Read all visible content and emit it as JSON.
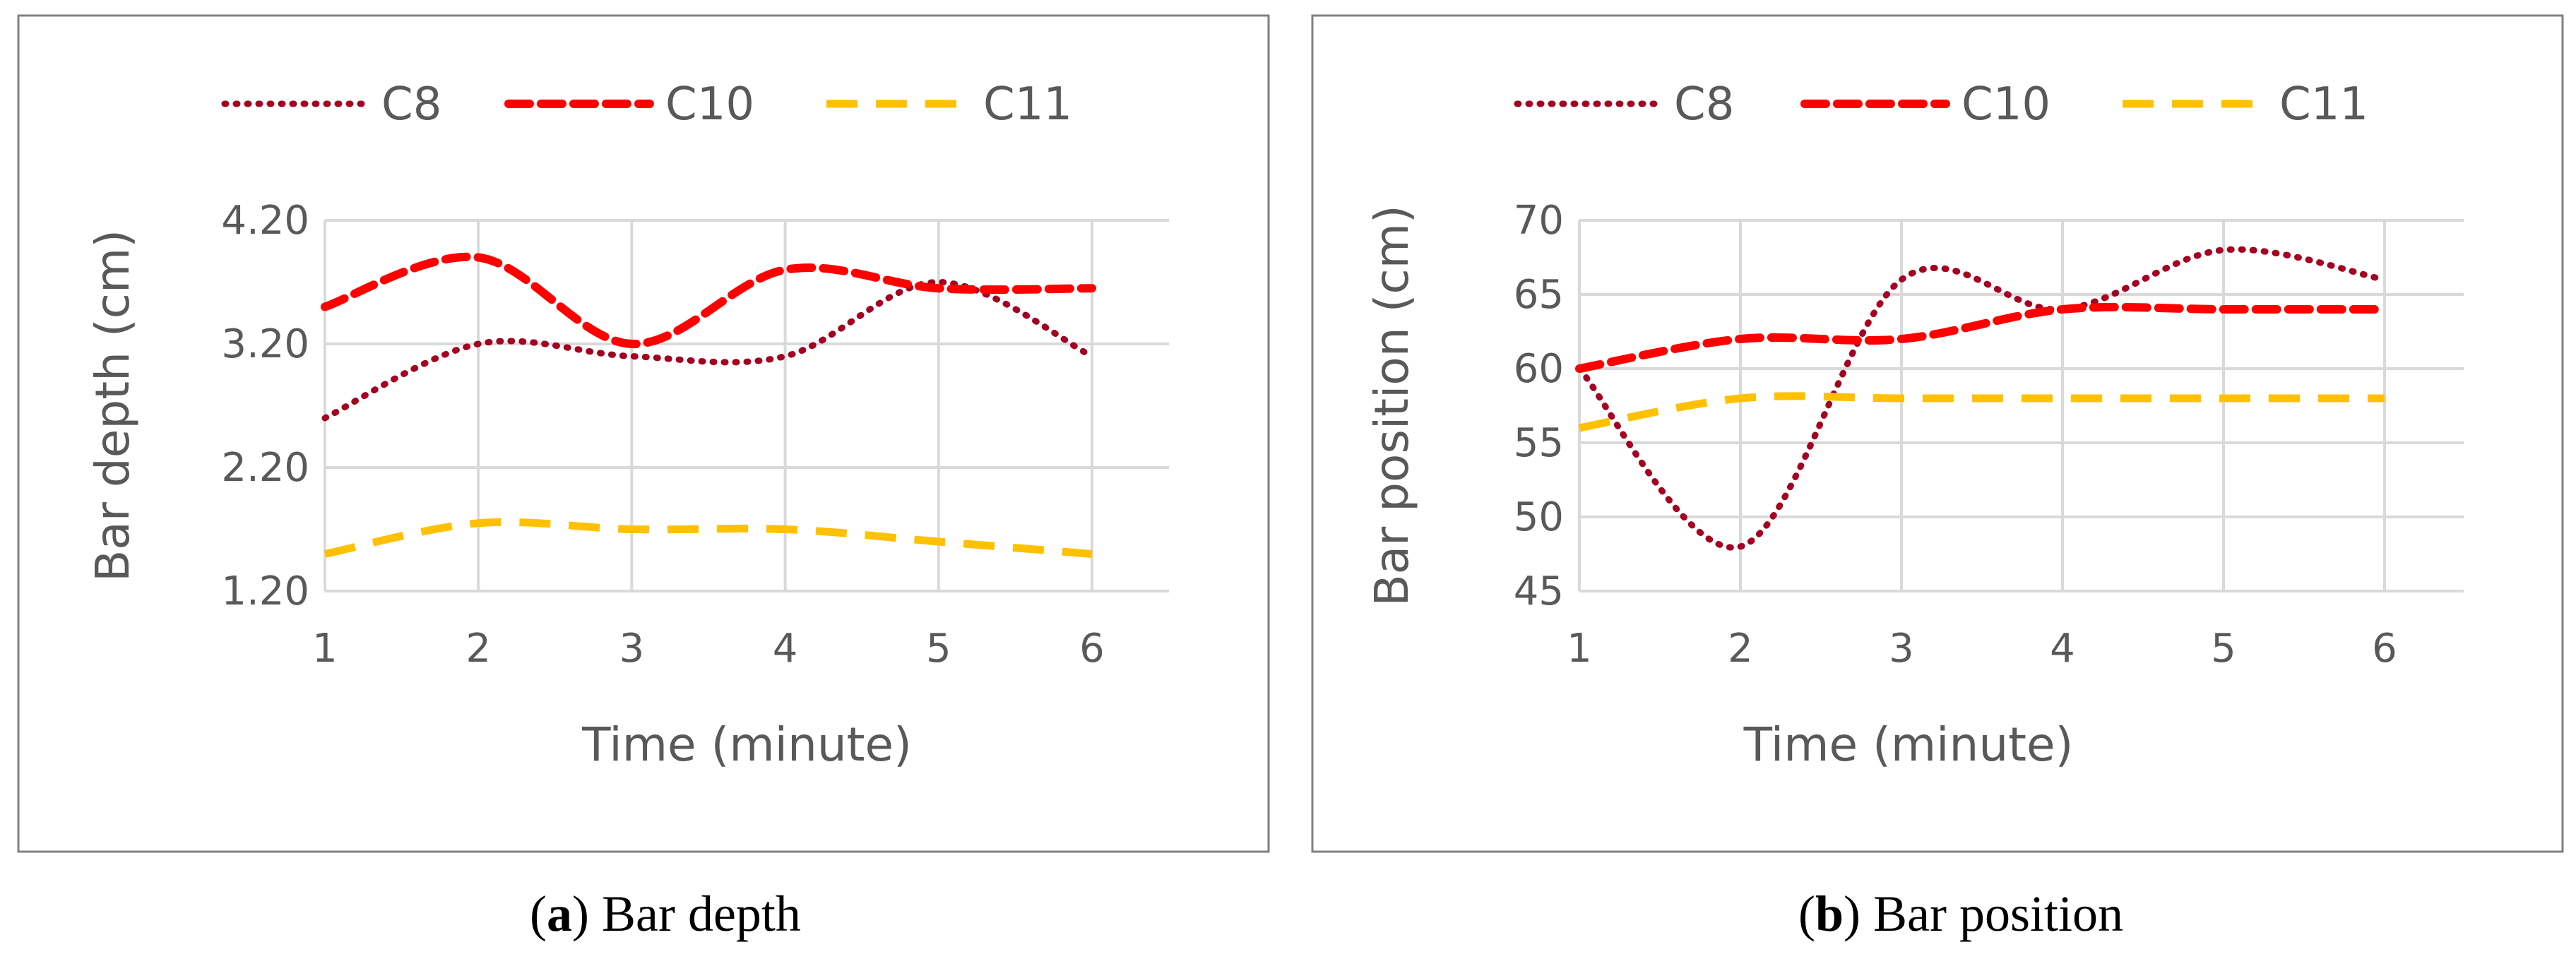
{
  "colors": {
    "C8": "#a50021",
    "C10": "#ff0000",
    "C11": "#ffc000",
    "grid": "#d9d9d9",
    "text": "#595959",
    "frame": "#808080"
  },
  "chart_data": [
    {
      "type": "line",
      "panel": "a",
      "ylabel": "Bar depth (cm)",
      "xlabel": "Time (minute)",
      "x": [
        1,
        2,
        3,
        4,
        5,
        6
      ],
      "xticks": [
        "1",
        "2",
        "3",
        "4",
        "5",
        "6"
      ],
      "ylim": [
        1.2,
        4.2
      ],
      "yticks": [
        1.2,
        2.2,
        3.2,
        4.2
      ],
      "ytick_labels": [
        "1.20",
        "2.20",
        "3.20",
        "4.20"
      ],
      "grid": true,
      "legend_position": "top",
      "series": [
        {
          "name": "C8",
          "style": "dotted",
          "values": [
            2.6,
            3.2,
            3.1,
            3.1,
            3.7,
            3.1
          ]
        },
        {
          "name": "C10",
          "style": "dashed",
          "values": [
            3.5,
            3.9,
            3.2,
            3.8,
            3.65,
            3.65
          ]
        },
        {
          "name": "C11",
          "style": "long-dashed",
          "values": [
            1.5,
            1.75,
            1.7,
            1.7,
            1.6,
            1.5
          ]
        }
      ],
      "caption_letter": "a",
      "caption_text": " Bar depth"
    },
    {
      "type": "line",
      "panel": "b",
      "ylabel": "Bar position (cm)",
      "xlabel": "Time (minute)",
      "x": [
        1,
        2,
        3,
        4,
        5,
        6
      ],
      "xticks": [
        "1",
        "2",
        "3",
        "4",
        "5",
        "6"
      ],
      "ylim": [
        45,
        70
      ],
      "yticks": [
        45,
        50,
        55,
        60,
        65,
        70
      ],
      "ytick_labels": [
        "45",
        "50",
        "55",
        "60",
        "65",
        "70"
      ],
      "grid": true,
      "legend_position": "top",
      "series": [
        {
          "name": "C8",
          "style": "dotted",
          "values": [
            60,
            48,
            66,
            64,
            68,
            66
          ]
        },
        {
          "name": "C10",
          "style": "dashed",
          "values": [
            60,
            62,
            62,
            64,
            64,
            64
          ]
        },
        {
          "name": "C11",
          "style": "long-dashed",
          "values": [
            56,
            58,
            58,
            58,
            58,
            58
          ]
        }
      ],
      "caption_letter": "b",
      "caption_text": " Bar position"
    }
  ]
}
